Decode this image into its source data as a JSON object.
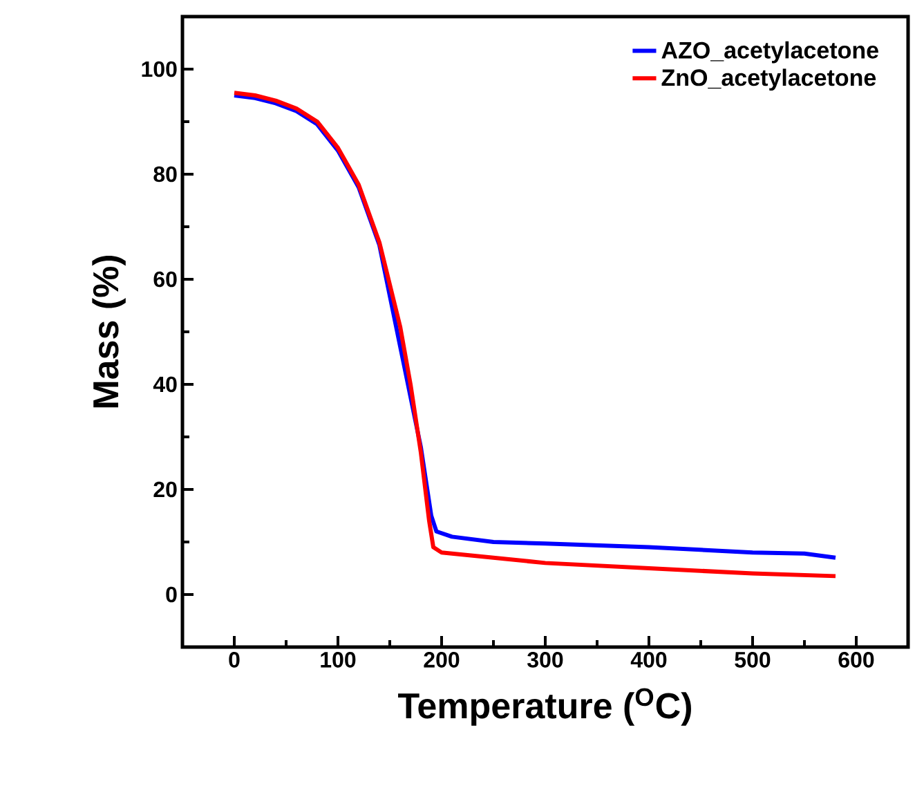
{
  "chart_data": {
    "type": "line",
    "xlabel": "Temperature ($^{O}$C)",
    "ylabel": "Mass (%)",
    "xlim": [
      -50,
      650
    ],
    "ylim": [
      -10,
      110
    ],
    "xticks": [
      0,
      100,
      200,
      300,
      400,
      500,
      600
    ],
    "yticks": [
      0,
      20,
      40,
      60,
      80,
      100
    ],
    "legend": "top right",
    "grid": false,
    "series": [
      {
        "name": "AZO_acetylacetone",
        "color": "#0000ff",
        "x": [
          0,
          20,
          40,
          60,
          80,
          100,
          120,
          140,
          160,
          170,
          180,
          190,
          195,
          210,
          250,
          300,
          400,
          500,
          550,
          580
        ],
        "values": [
          95,
          94.5,
          93.5,
          92,
          89.5,
          84.5,
          77.5,
          66.5,
          null,
          null,
          28,
          15,
          12,
          11,
          10,
          9.7,
          9,
          8,
          7.8,
          7
        ]
      },
      {
        "name": "ZnO_acetylacetone",
        "color": "#ff0000",
        "x": [
          0,
          20,
          40,
          60,
          80,
          100,
          120,
          140,
          160,
          170,
          180,
          188,
          192,
          200,
          250,
          300,
          400,
          500,
          580
        ],
        "values": [
          95.5,
          95,
          94,
          92.5,
          90,
          85,
          78,
          67,
          51,
          40,
          27,
          14,
          9,
          8,
          7,
          6,
          5,
          4,
          3.5
        ]
      }
    ]
  }
}
